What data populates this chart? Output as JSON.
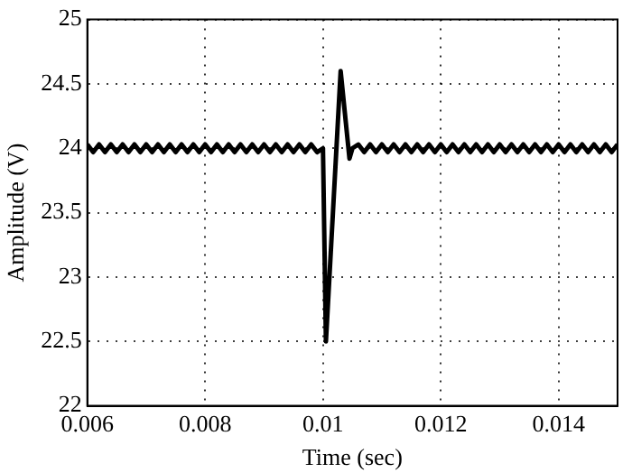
{
  "chart_data": {
    "type": "line",
    "xlabel": "Time (sec)",
    "ylabel": "Amplitude (V)",
    "xlim": [
      0.006,
      0.015
    ],
    "xticks": [
      0.006,
      0.008,
      0.01,
      0.012,
      0.014
    ],
    "ylim": [
      22,
      25
    ],
    "yticks": [
      22,
      22.5,
      23,
      23.5,
      24,
      24.5,
      25
    ],
    "grid": true,
    "marker": "none",
    "line_style": "solid",
    "series": [
      {
        "color": "#000000",
        "x": [
          0.006,
          0.0061,
          0.0062,
          0.0063,
          0.0064,
          0.0065,
          0.0066,
          0.0067,
          0.0068,
          0.0069,
          0.007,
          0.0071,
          0.0072,
          0.0073,
          0.0074,
          0.0075,
          0.0076,
          0.0077,
          0.0078,
          0.0079,
          0.008,
          0.0081,
          0.0082,
          0.0083,
          0.0084,
          0.0085,
          0.0086,
          0.0087,
          0.0088,
          0.0089,
          0.009,
          0.0091,
          0.0092,
          0.0093,
          0.0094,
          0.0095,
          0.0096,
          0.0097,
          0.0098,
          0.0099,
          0.01,
          0.01005,
          0.0103,
          0.01045,
          0.0105,
          0.0106,
          0.0107,
          0.0108,
          0.0109,
          0.011,
          0.0111,
          0.0112,
          0.0113,
          0.0114,
          0.0115,
          0.0116,
          0.0117,
          0.0118,
          0.0119,
          0.012,
          0.0121,
          0.0122,
          0.0123,
          0.0124,
          0.0125,
          0.0126,
          0.0127,
          0.0128,
          0.0129,
          0.013,
          0.0131,
          0.0132,
          0.0133,
          0.0134,
          0.0135,
          0.0136,
          0.0137,
          0.0138,
          0.0139,
          0.014,
          0.0141,
          0.0142,
          0.0143,
          0.0144,
          0.0145,
          0.0146,
          0.0147,
          0.0148,
          0.0149,
          0.015
        ],
        "values": [
          24.03,
          23.97,
          24.03,
          23.97,
          24.03,
          23.97,
          24.03,
          23.97,
          24.03,
          23.97,
          24.03,
          23.97,
          24.03,
          23.97,
          24.03,
          23.97,
          24.03,
          23.97,
          24.03,
          23.97,
          24.03,
          23.97,
          24.03,
          23.97,
          24.03,
          23.97,
          24.03,
          23.97,
          24.03,
          23.97,
          24.03,
          23.97,
          24.03,
          23.97,
          24.03,
          23.97,
          24.03,
          23.97,
          24.03,
          23.97,
          24.0,
          22.5,
          24.6,
          23.92,
          24.0,
          24.03,
          23.97,
          24.03,
          23.97,
          24.03,
          23.97,
          24.03,
          23.97,
          24.03,
          23.97,
          24.03,
          23.97,
          24.03,
          23.97,
          24.03,
          23.97,
          24.03,
          23.97,
          24.03,
          23.97,
          24.03,
          23.97,
          24.03,
          23.97,
          24.03,
          23.97,
          24.03,
          23.97,
          24.03,
          23.97,
          24.03,
          23.97,
          24.03,
          23.97,
          24.03,
          23.97,
          24.03,
          23.97,
          24.03,
          23.97,
          24.03,
          23.97,
          24.03,
          23.97,
          24.03
        ]
      }
    ]
  }
}
